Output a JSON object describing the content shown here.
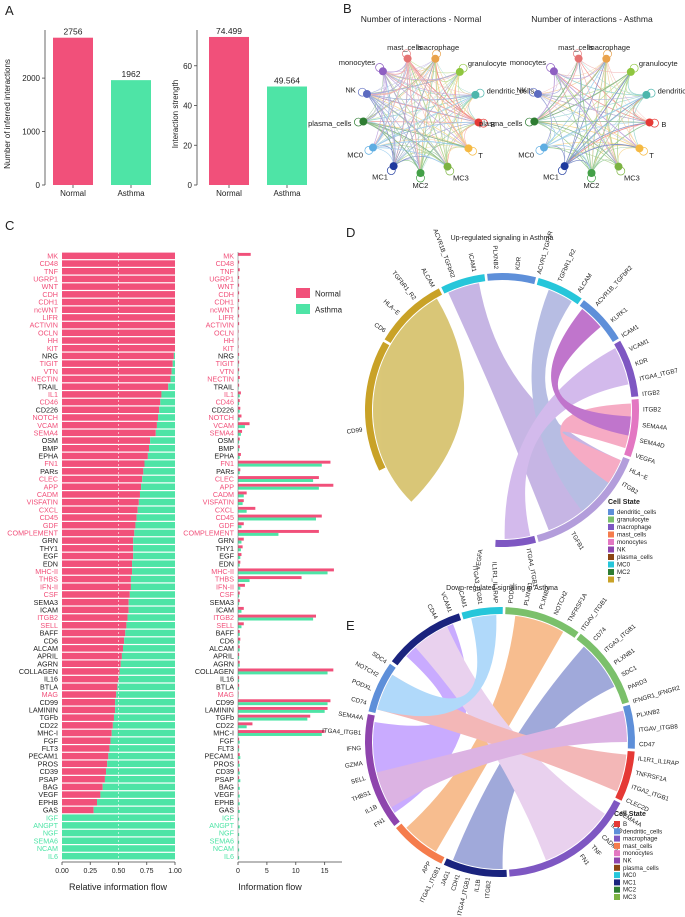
{
  "colors": {
    "normal": "#F1507A",
    "asthma": "#4EE4A6",
    "text_dark": "#222222"
  },
  "panel_labels": {
    "a": "A",
    "b": "B",
    "c": "C",
    "d": "D",
    "e": "E"
  },
  "chart_data": [
    {
      "id": "A1",
      "type": "bar",
      "categories": [
        "Normal",
        "Asthma"
      ],
      "values": [
        2756,
        1962
      ],
      "value_labels": [
        "2756",
        "1962"
      ],
      "ylabel": "Number of inferred interactions",
      "ylim": [
        0,
        2900
      ],
      "yticks": [
        0,
        1000,
        2000
      ],
      "ytick_labels": [
        "0",
        "1000",
        "2000"
      ]
    },
    {
      "id": "A2",
      "type": "bar",
      "categories": [
        "Normal",
        "Asthma"
      ],
      "values": [
        74.499,
        49.564
      ],
      "value_labels": [
        "74.499",
        "49.564"
      ],
      "ylabel": "Interaction strength",
      "ylim": [
        0,
        78
      ],
      "yticks": [
        0,
        20,
        40,
        60
      ],
      "ytick_labels": [
        "0",
        "20",
        "40",
        "60"
      ]
    },
    {
      "id": "B1",
      "type": "network",
      "title": "Number of interactions - Normal",
      "nodes": [
        {
          "name": "macrophage",
          "color": "#E9A24B"
        },
        {
          "name": "granulocyte",
          "color": "#8FC63F"
        },
        {
          "name": "dendritic_cells",
          "color": "#4DB6AC"
        },
        {
          "name": "B",
          "color": "#E53935"
        },
        {
          "name": "T",
          "color": "#F5B942"
        },
        {
          "name": "MC3",
          "color": "#7CB342"
        },
        {
          "name": "MC2",
          "color": "#43A047"
        },
        {
          "name": "MC1",
          "color": "#1E3A9E"
        },
        {
          "name": "MC0",
          "color": "#5DADE2"
        },
        {
          "name": "plasma_cells",
          "color": "#2E7D32"
        },
        {
          "name": "NK",
          "color": "#5C6BC0"
        },
        {
          "name": "monocytes",
          "color": "#8E5FC2"
        },
        {
          "name": "mast_cells",
          "color": "#E57373"
        }
      ]
    },
    {
      "id": "B2",
      "type": "network",
      "title": "Number of interactions - Asthma",
      "nodes": [
        {
          "name": "macrophage",
          "color": "#E9A24B"
        },
        {
          "name": "granulocyte",
          "color": "#8FC63F"
        },
        {
          "name": "dendritic_cells",
          "color": "#4DB6AC"
        },
        {
          "name": "B",
          "color": "#E53935"
        },
        {
          "name": "T",
          "color": "#F5B942"
        },
        {
          "name": "MC3",
          "color": "#7CB342"
        },
        {
          "name": "MC2",
          "color": "#43A047"
        },
        {
          "name": "MC1",
          "color": "#1E3A9E"
        },
        {
          "name": "MC0",
          "color": "#5DADE2"
        },
        {
          "name": "plasma_cells",
          "color": "#2E7D32"
        },
        {
          "name": "NK",
          "color": "#5C6BC0"
        },
        {
          "name": "monocytes",
          "color": "#8E5FC2"
        },
        {
          "name": "mast_cells",
          "color": "#E57373"
        }
      ]
    },
    {
      "id": "C1",
      "type": "stacked_bar_horizontal",
      "xlabel": "Relative information flow",
      "xticks": [
        0.0,
        0.25,
        0.5,
        0.75,
        1.0
      ],
      "xtick_labels": [
        "0.00",
        "0.25",
        "0.50",
        "0.75",
        "1.00"
      ],
      "categories": [
        "MK",
        "CD48",
        "TNF",
        "UGRP1",
        "WNT",
        "CDH",
        "CDH1",
        "ncWNT",
        "LIFR",
        "ACTIVIN",
        "OCLN",
        "HH",
        "KIT",
        "NRG",
        "TIGIT",
        "VTN",
        "NECTIN",
        "TRAIL",
        "IL1",
        "CD46",
        "CD226",
        "NOTCH",
        "VCAM",
        "SEMA4",
        "OSM",
        "BMP",
        "EPHA",
        "FN1",
        "PARs",
        "CLEC",
        "APP",
        "CADM",
        "VISFATIN",
        "CXCL",
        "CD45",
        "GDF",
        "COMPLEMENT",
        "GRN",
        "THY1",
        "EGF",
        "EDN",
        "MHC-II",
        "THBS",
        "IFN-II",
        "CSF",
        "SEMA3",
        "ICAM",
        "ITGB2",
        "SELL",
        "BAFF",
        "CD6",
        "ALCAM",
        "APRIL",
        "AGRN",
        "COLLAGEN",
        "IL16",
        "BTLA",
        "MAG",
        "CD99",
        "LAMININ",
        "TGFb",
        "CD22",
        "MHC-I",
        "FGF",
        "FLT3",
        "PECAM1",
        "PROS",
        "CD39",
        "PSAP",
        "BAG",
        "VEGF",
        "EPHB",
        "GAS",
        "IGF",
        "ANGPT",
        "NGF",
        "SEMA6",
        "NCAM",
        "IL6"
      ],
      "label_colors": [
        "pink",
        "pink",
        "pink",
        "pink",
        "pink",
        "pink",
        "pink",
        "pink",
        "pink",
        "pink",
        "pink",
        "pink",
        "pink",
        "dark",
        "pink",
        "pink",
        "pink",
        "dark",
        "pink",
        "pink",
        "dark",
        "pink",
        "pink",
        "pink",
        "dark",
        "dark",
        "dark",
        "pink",
        "dark",
        "pink",
        "pink",
        "pink",
        "pink",
        "pink",
        "pink",
        "pink",
        "pink",
        "dark",
        "dark",
        "dark",
        "dark",
        "pink",
        "pink",
        "pink",
        "pink",
        "dark",
        "dark",
        "pink",
        "pink",
        "dark",
        "dark",
        "dark",
        "dark",
        "dark",
        "dark",
        "dark",
        "dark",
        "pink",
        "dark",
        "dark",
        "dark",
        "dark",
        "dark",
        "dark",
        "dark",
        "dark",
        "dark",
        "dark",
        "dark",
        "dark",
        "dark",
        "dark",
        "dark",
        "green",
        "green",
        "green",
        "green",
        "green",
        "green"
      ],
      "normal_fraction": [
        1,
        1,
        1,
        1,
        1,
        1,
        1,
        1,
        1,
        1,
        1,
        1,
        1,
        0.99,
        0.98,
        0.97,
        0.96,
        0.94,
        0.88,
        0.87,
        0.86,
        0.85,
        0.84,
        0.83,
        0.78,
        0.77,
        0.76,
        0.73,
        0.72,
        0.71,
        0.7,
        0.69,
        0.68,
        0.67,
        0.66,
        0.65,
        0.64,
        0.63,
        0.63,
        0.63,
        0.62,
        0.62,
        0.61,
        0.61,
        0.6,
        0.59,
        0.59,
        0.58,
        0.57,
        0.56,
        0.55,
        0.54,
        0.53,
        0.52,
        0.51,
        0.5,
        0.49,
        0.48,
        0.47,
        0.47,
        0.46,
        0.45,
        0.44,
        0.43,
        0.42,
        0.41,
        0.4,
        0.39,
        0.38,
        0.36,
        0.34,
        0.31,
        0.28,
        0,
        0,
        0,
        0,
        0,
        0
      ]
    },
    {
      "id": "C2",
      "type": "bar_horizontal_grouped",
      "xlabel": "Information flow",
      "xticks": [
        0,
        5,
        10,
        15
      ],
      "xtick_labels": [
        "0",
        "5",
        "10",
        "15"
      ],
      "xlim": [
        0,
        18
      ],
      "legend": [
        "Normal",
        "Asthma"
      ],
      "legend_position": "top-right",
      "normal": [
        2.2,
        0.2,
        0.3,
        0.2,
        0.2,
        0.2,
        0.2,
        0.2,
        0.2,
        0.2,
        0.1,
        0.1,
        0.1,
        0.2,
        0.2,
        0.2,
        0.3,
        0.2,
        0.5,
        0.3,
        0.4,
        0.6,
        2.0,
        0.7,
        0.3,
        0.3,
        0.5,
        16.0,
        0.4,
        14.0,
        16.5,
        1.5,
        1.0,
        3.0,
        14.5,
        1.0,
        14.0,
        1.0,
        0.8,
        0.6,
        0.4,
        16.6,
        11.0,
        1.2,
        0.3,
        0.3,
        1.0,
        13.5,
        1.0,
        0.3,
        0.4,
        0.3,
        0.2,
        0.3,
        16.5,
        0.2,
        0.2,
        0.1,
        16.0,
        15.5,
        12.5,
        2.5,
        15.0,
        0.2,
        0.2,
        0.3,
        0.2,
        0.2,
        0.2,
        0.1,
        0.1,
        0.1,
        0.1,
        0,
        0,
        0,
        0,
        0,
        0
      ],
      "asthma": [
        0,
        0,
        0,
        0,
        0,
        0,
        0,
        0,
        0,
        0,
        0,
        0,
        0,
        0.1,
        0.1,
        0.1,
        0.1,
        0.1,
        0.3,
        0.2,
        0.3,
        0.3,
        1.2,
        0.5,
        0.2,
        0.2,
        0.3,
        14.5,
        0.3,
        13.0,
        14.0,
        1.0,
        0.8,
        1.5,
        13.5,
        0.6,
        7.0,
        0.6,
        0.5,
        0.4,
        0.3,
        15.5,
        2.0,
        0.4,
        0.2,
        0.2,
        0.6,
        13.0,
        0.6,
        0.3,
        0.3,
        0.3,
        0.2,
        0.3,
        15.5,
        0.2,
        0.2,
        0.1,
        15.5,
        15.0,
        12.0,
        1.5,
        14.5,
        0.3,
        0.2,
        0.4,
        0.3,
        0.3,
        0.4,
        0.3,
        0.3,
        0.3,
        0.3,
        0.2,
        0.3,
        0.2,
        0.2,
        0.2,
        0.2
      ]
    },
    {
      "id": "D",
      "type": "chord",
      "title": "Up-regulated signaling in Asthma",
      "top_labels": [
        "CD6",
        "HLA−E",
        "TGFbR1_R2",
        "ALCAM",
        "ACVR1B_TGFbR2",
        "ICAM1",
        "PLXNB2",
        "KDR",
        "ACVR1_TGFbR",
        "TGFbR1_R2",
        "ALCAM",
        "ACVR1B_TGFbR2",
        "KLRK1"
      ],
      "right_labels": [
        "ICAM1",
        "VCAM1",
        "KDR",
        "ITGA4_ITGB7",
        "ITGB2",
        "ITGB2",
        "SEMA4A",
        "SEMA4D",
        "VEGFA",
        "HLA−E",
        "ITGB2"
      ],
      "bottom_labels": [
        "TGFB1",
        "ITGA4_ITGB1",
        "VEGFA"
      ],
      "left_labels": [
        "CD99"
      ],
      "legend_title": "Cell State",
      "legend": [
        {
          "name": "dendritic_cells",
          "color": "#5E8FD9"
        },
        {
          "name": "granulocyte",
          "color": "#7BC06B"
        },
        {
          "name": "macrophage",
          "color": "#7E57C2"
        },
        {
          "name": "mast_cells",
          "color": "#F57C4C"
        },
        {
          "name": "monocytes",
          "color": "#E377C2"
        },
        {
          "name": "NK",
          "color": "#8E44AD"
        },
        {
          "name": "plasma_cells",
          "color": "#8B4513"
        },
        {
          "name": "MC0",
          "color": "#26C6DA"
        },
        {
          "name": "MC2",
          "color": "#2E7D32"
        },
        {
          "name": "T",
          "color": "#C9A227"
        }
      ]
    },
    {
      "id": "E",
      "type": "chord",
      "title": "Down-regulated signaling in Asthma",
      "top_labels": [
        "CD44",
        "VCAM1",
        "ICAM1",
        "ITGA3_ITGB1",
        "IL1R1_IL1RAP",
        "PODXL",
        "PLXNB1",
        "PLXNB2",
        "NOTCH2",
        "TNFRSF1A",
        "ITGAV_ITGB1",
        "CD74",
        "ITGA3_ITGB1",
        "PLXNB1"
      ],
      "left_labels": [
        "SDC4",
        "NOTCH2",
        "PODXL",
        "CD74",
        "SEMA4A",
        "ITGA4_ITGB1",
        "IFNG",
        "GZMA",
        "SELL",
        "THBS1",
        "IL1B",
        "FN1"
      ],
      "right_labels": [
        "SDC1",
        "PARD3",
        "IFNGR1_IFNGR2",
        "PLXNB2",
        "ITGAV_ITGB8",
        "CD47",
        "IL1R1_IL1RAP",
        "TNFRSF1A",
        "ITGA2_ITGB1",
        "CLEC2D",
        "SEMA4A",
        "IL1B",
        "CADM1",
        "TNF",
        "FN1"
      ],
      "bottom_labels": [
        "ITGB2",
        "IL1B",
        "ITGA4_ITGB1",
        "CDH1",
        "JAG1",
        "ITGA1_ITGB1",
        "APP"
      ],
      "legend_title": "Cell State",
      "legend": [
        {
          "name": "B",
          "color": "#E53935"
        },
        {
          "name": "dendritic_cells",
          "color": "#5E8FD9"
        },
        {
          "name": "macrophage",
          "color": "#7E57C2"
        },
        {
          "name": "mast_cells",
          "color": "#F57C4C"
        },
        {
          "name": "monocytes",
          "color": "#E377C2"
        },
        {
          "name": "NK",
          "color": "#8E44AD"
        },
        {
          "name": "plasma_cells",
          "color": "#8B4513"
        },
        {
          "name": "MC0",
          "color": "#26C6DA"
        },
        {
          "name": "MC1",
          "color": "#1A237E"
        },
        {
          "name": "MC2",
          "color": "#2E7D32"
        },
        {
          "name": "MC3",
          "color": "#7CB342"
        }
      ]
    }
  ]
}
